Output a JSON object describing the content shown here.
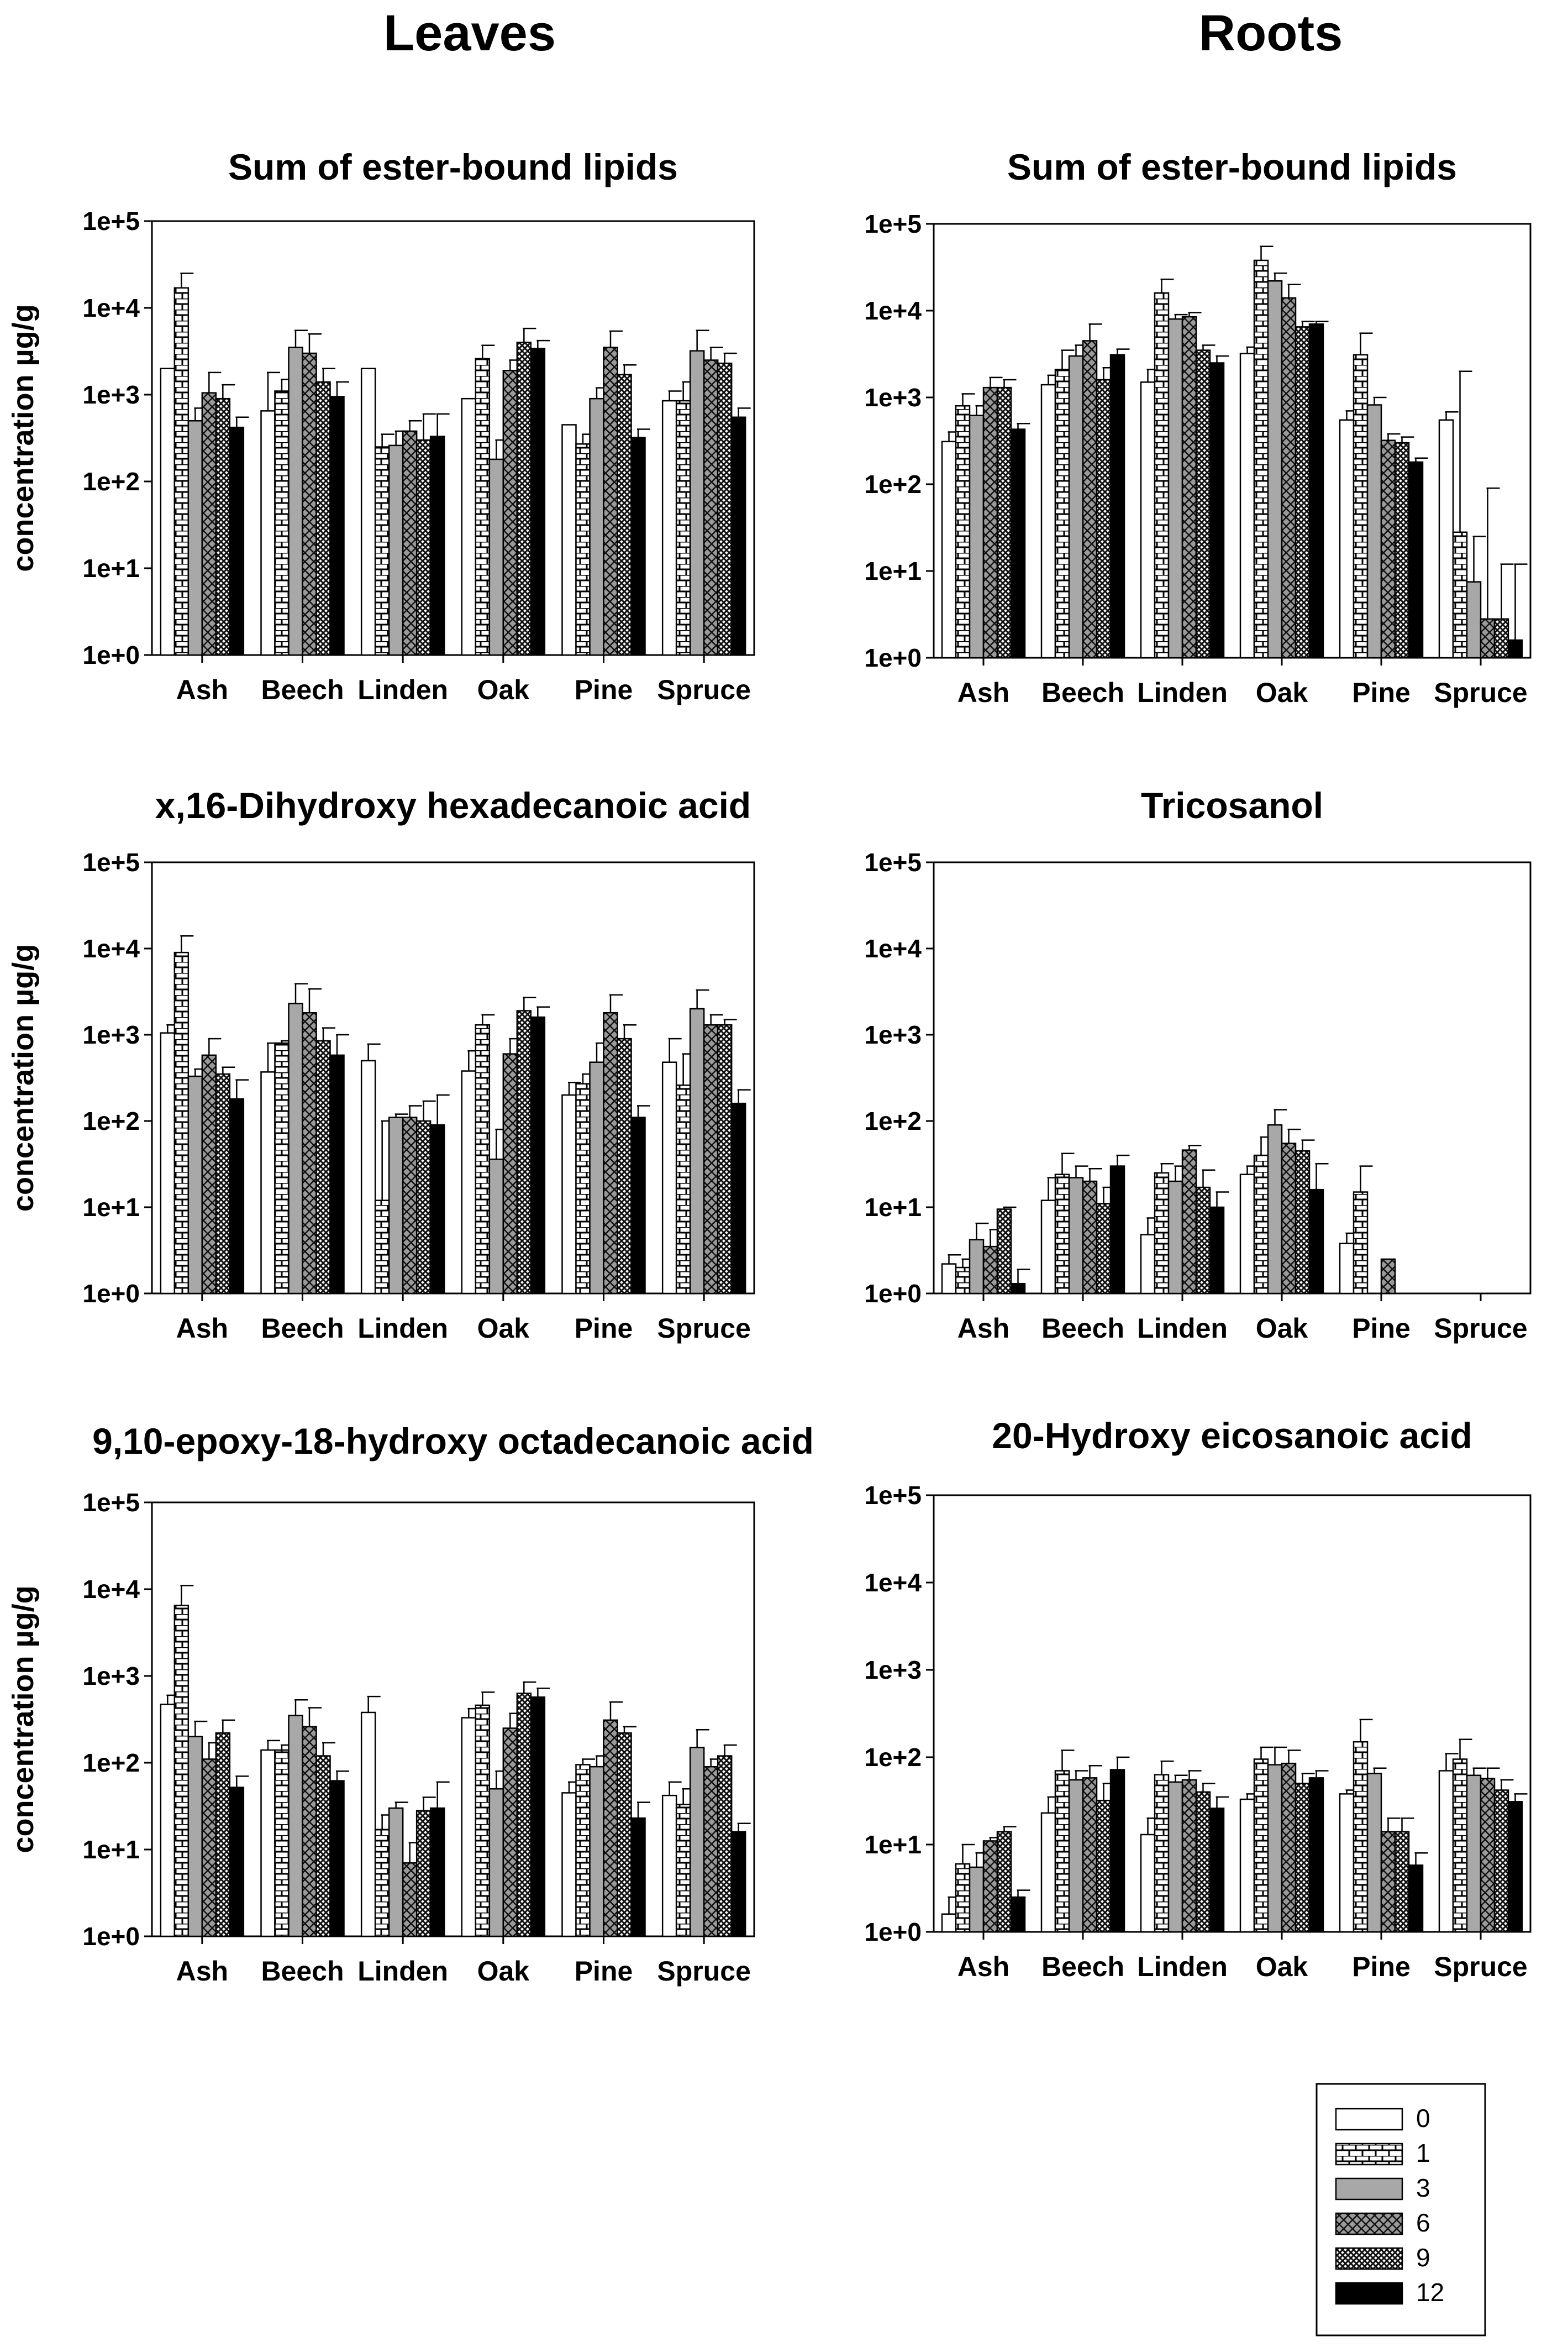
{
  "headers": {
    "left": "Leaves",
    "right": "Roots"
  },
  "legend": {
    "entries": [
      {
        "label": "0",
        "fill": "open"
      },
      {
        "label": "1",
        "fill": "brick"
      },
      {
        "label": "3",
        "fill": "gray"
      },
      {
        "label": "6",
        "fill": "crosshatch"
      },
      {
        "label": "9",
        "fill": "dots"
      },
      {
        "label": "12",
        "fill": "black"
      }
    ]
  },
  "chart_data": [
    {
      "type": "bar",
      "panel": "leaves-1",
      "title": "Sum of ester-bound lipids",
      "ylabel": "concentration µg/g",
      "xlabel": "",
      "yscale": "log",
      "ylim": [
        1,
        100000
      ],
      "yticks": [
        "1e+0",
        "1e+1",
        "1e+2",
        "1e+3",
        "1e+4",
        "1e+5"
      ],
      "categories": [
        "Ash",
        "Beech",
        "Linden",
        "Oak",
        "Pine",
        "Spruce"
      ],
      "series": [
        {
          "name": "0",
          "values": [
            2000,
            650,
            2000,
            900,
            450,
            850
          ]
        },
        {
          "name": "1",
          "values": [
            17000,
            1100,
            250,
            2600,
            270,
            850
          ]
        },
        {
          "name": "3",
          "values": [
            500,
            3500,
            260,
            180,
            900,
            3200
          ]
        },
        {
          "name": "6",
          "values": [
            1050,
            3000,
            380,
            1900,
            3500,
            2500
          ]
        },
        {
          "name": "9",
          "values": [
            900,
            1400,
            300,
            4000,
            1700,
            2300
          ]
        },
        {
          "name": "12",
          "values": [
            420,
            950,
            330,
            3400,
            320,
            550
          ]
        }
      ],
      "errors": [
        [
          1500,
          1800,
          700,
          300,
          200,
          1100
        ],
        [
          25000,
          1500,
          350,
          3700,
          350,
          1400
        ],
        [
          700,
          5500,
          380,
          300,
          1200,
          5500
        ],
        [
          1800,
          5000,
          500,
          2500,
          5400,
          3500
        ],
        [
          1300,
          2000,
          600,
          5800,
          2200,
          3000
        ],
        [
          550,
          1400,
          600,
          4200,
          400,
          700
        ]
      ]
    },
    {
      "type": "bar",
      "panel": "roots-1",
      "title": "Sum of ester-bound lipids",
      "ylabel": "",
      "xlabel": "",
      "yscale": "log",
      "ylim": [
        1,
        100000
      ],
      "yticks": [
        "1e+0",
        "1e+1",
        "1e+2",
        "1e+3",
        "1e+4",
        "1e+5"
      ],
      "categories": [
        "Ash",
        "Beech",
        "Linden",
        "Oak",
        "Pine",
        "Spruce"
      ],
      "series": [
        {
          "name": "0",
          "values": [
            310,
            1400,
            1500,
            3200,
            550,
            550
          ]
        },
        {
          "name": "1",
          "values": [
            800,
            2100,
            16000,
            38000,
            3100,
            28
          ]
        },
        {
          "name": "3",
          "values": [
            620,
            3000,
            8000,
            22000,
            820,
            7.5
          ]
        },
        {
          "name": "6",
          "values": [
            1300,
            4500,
            8500,
            14000,
            320,
            2.8
          ]
        },
        {
          "name": "9",
          "values": [
            1300,
            1600,
            3500,
            6500,
            300,
            2.8
          ]
        },
        {
          "name": "12",
          "values": [
            430,
            3100,
            2500,
            7000,
            180,
            1.6
          ]
        }
      ],
      "errors": [
        [
          400,
          1800,
          2100,
          3800,
          700,
          680
        ],
        [
          1100,
          3500,
          23000,
          55000,
          5500,
          2000
        ],
        [
          800,
          4000,
          9000,
          27000,
          1000,
          25
        ],
        [
          1700,
          7000,
          9500,
          20000,
          380,
          90
        ],
        [
          1600,
          2200,
          4000,
          7500,
          350,
          12
        ],
        [
          500,
          3600,
          3000,
          7500,
          200,
          12
        ]
      ]
    },
    {
      "type": "bar",
      "panel": "leaves-2",
      "title": "x,16-Dihydroxy hexadecanoic acid",
      "ylabel": "concentration µg/g",
      "xlabel": "",
      "yscale": "log",
      "ylim": [
        1,
        100000
      ],
      "yticks": [
        "1e+0",
        "1e+1",
        "1e+2",
        "1e+3",
        "1e+4",
        "1e+5"
      ],
      "categories": [
        "Ash",
        "Beech",
        "Linden",
        "Oak",
        "Pine",
        "Spruce"
      ],
      "series": [
        {
          "name": "0",
          "values": [
            1050,
            370,
            500,
            380,
            200,
            480
          ]
        },
        {
          "name": "1",
          "values": [
            9000,
            800,
            12,
            1300,
            270,
            260
          ]
        },
        {
          "name": "3",
          "values": [
            330,
            2300,
            110,
            36,
            480,
            2000
          ]
        },
        {
          "name": "6",
          "values": [
            580,
            1800,
            110,
            600,
            1800,
            1300
          ]
        },
        {
          "name": "9",
          "values": [
            350,
            850,
            100,
            1900,
            900,
            1300
          ]
        },
        {
          "name": "12",
          "values": [
            180,
            580,
            90,
            1600,
            110,
            160
          ]
        }
      ],
      "errors": [
        [
          1300,
          800,
          780,
          650,
          280,
          900
        ],
        [
          14000,
          850,
          100,
          1700,
          350,
          600
        ],
        [
          400,
          3900,
          120,
          80,
          800,
          3300
        ],
        [
          900,
          3400,
          150,
          900,
          2900,
          1700
        ],
        [
          420,
          1200,
          170,
          2700,
          1300,
          1500
        ],
        [
          300,
          1000,
          200,
          2100,
          150,
          230
        ]
      ]
    },
    {
      "type": "bar",
      "panel": "roots-2",
      "title": "Tricosanol",
      "ylabel": "",
      "xlabel": "",
      "yscale": "log",
      "ylim": [
        1,
        100000
      ],
      "yticks": [
        "1e+0",
        "1e+1",
        "1e+2",
        "1e+3",
        "1e+4",
        "1e+5"
      ],
      "categories": [
        "Ash",
        "Beech",
        "Linden",
        "Oak",
        "Pine",
        "Spruce"
      ],
      "series": [
        {
          "name": "0",
          "values": [
            2.2,
            12,
            4.8,
            24,
            3.8,
            null
          ]
        },
        {
          "name": "1",
          "values": [
            2,
            24,
            25,
            40,
            15,
            null
          ]
        },
        {
          "name": "3",
          "values": [
            4.2,
            22,
            20,
            90,
            null,
            null
          ]
        },
        {
          "name": "6",
          "values": [
            3.5,
            20,
            46,
            55,
            2.5,
            null
          ]
        },
        {
          "name": "9",
          "values": [
            9.5,
            11,
            17,
            45,
            null,
            null
          ]
        },
        {
          "name": "12",
          "values": [
            1.3,
            30,
            10,
            16,
            null,
            null
          ]
        }
      ],
      "errors": [
        [
          2.8,
          22,
          7.5,
          30,
          5,
          null
        ],
        [
          2.5,
          42,
          32,
          65,
          30,
          null
        ],
        [
          6.5,
          30,
          30,
          135,
          null,
          null
        ],
        [
          5.5,
          28,
          52,
          80,
          null,
          null
        ],
        [
          10,
          17,
          27,
          60,
          null,
          null
        ],
        [
          1.9,
          40,
          15,
          32,
          null,
          null
        ]
      ]
    },
    {
      "type": "bar",
      "panel": "leaves-3",
      "title": "9,10-epoxy-18-hydroxy octadecanoic acid",
      "ylabel": "concentration µg/g",
      "xlabel": "",
      "yscale": "log",
      "ylim": [
        1,
        100000
      ],
      "yticks": [
        "1e+0",
        "1e+1",
        "1e+2",
        "1e+3",
        "1e+4",
        "1e+5"
      ],
      "categories": [
        "Ash",
        "Beech",
        "Linden",
        "Oak",
        "Pine",
        "Spruce"
      ],
      "series": [
        {
          "name": "0",
          "values": [
            470,
            140,
            380,
            330,
            45,
            42
          ]
        },
        {
          "name": "1",
          "values": [
            6500,
            140,
            17,
            460,
            95,
            33
          ]
        },
        {
          "name": "3",
          "values": [
            200,
            350,
            30,
            50,
            90,
            150
          ]
        },
        {
          "name": "6",
          "values": [
            110,
            260,
            7,
            250,
            310,
            90
          ]
        },
        {
          "name": "9",
          "values": [
            220,
            120,
            28,
            630,
            220,
            120
          ]
        },
        {
          "name": "12",
          "values": [
            52,
            62,
            30,
            570,
            23,
            16
          ]
        }
      ],
      "errors": [
        [
          600,
          180,
          580,
          420,
          60,
          60
        ],
        [
          11000,
          160,
          25,
          650,
          110,
          50
        ],
        [
          300,
          530,
          35,
          80,
          120,
          240
        ],
        [
          170,
          430,
          12,
          370,
          500,
          110
        ],
        [
          310,
          170,
          40,
          850,
          260,
          160
        ],
        [
          70,
          80,
          60,
          720,
          35,
          20
        ]
      ]
    },
    {
      "type": "bar",
      "panel": "roots-3",
      "title": "20-Hydroxy eicosanoic acid",
      "ylabel": "",
      "xlabel": "",
      "yscale": "log",
      "ylim": [
        1,
        100000
      ],
      "yticks": [
        "1e+0",
        "1e+1",
        "1e+2",
        "1e+3",
        "1e+4",
        "1e+5"
      ],
      "categories": [
        "Ash",
        "Beech",
        "Linden",
        "Oak",
        "Pine",
        "Spruce"
      ],
      "series": [
        {
          "name": "0",
          "values": [
            1.6,
            23,
            13,
            33,
            38,
            70
          ]
        },
        {
          "name": "1",
          "values": [
            6,
            70,
            63,
            95,
            150,
            95
          ]
        },
        {
          "name": "3",
          "values": [
            5.5,
            55,
            52,
            82,
            65,
            62
          ]
        },
        {
          "name": "6",
          "values": [
            11,
            58,
            55,
            85,
            14,
            57
          ]
        },
        {
          "name": "9",
          "values": [
            14,
            32,
            40,
            50,
            14,
            42
          ]
        },
        {
          "name": "12",
          "values": [
            2.5,
            72,
            26,
            58,
            5.8,
            31
          ]
        }
      ],
      "errors": [
        [
          2.5,
          35,
          20,
          38,
          42,
          110
        ],
        [
          10,
          120,
          90,
          130,
          270,
          160
        ],
        [
          8,
          70,
          62,
          130,
          75,
          75
        ],
        [
          12,
          80,
          70,
          120,
          20,
          75
        ],
        [
          16,
          50,
          50,
          65,
          20,
          55
        ],
        [
          3,
          100,
          35,
          70,
          8,
          38
        ]
      ]
    }
  ]
}
